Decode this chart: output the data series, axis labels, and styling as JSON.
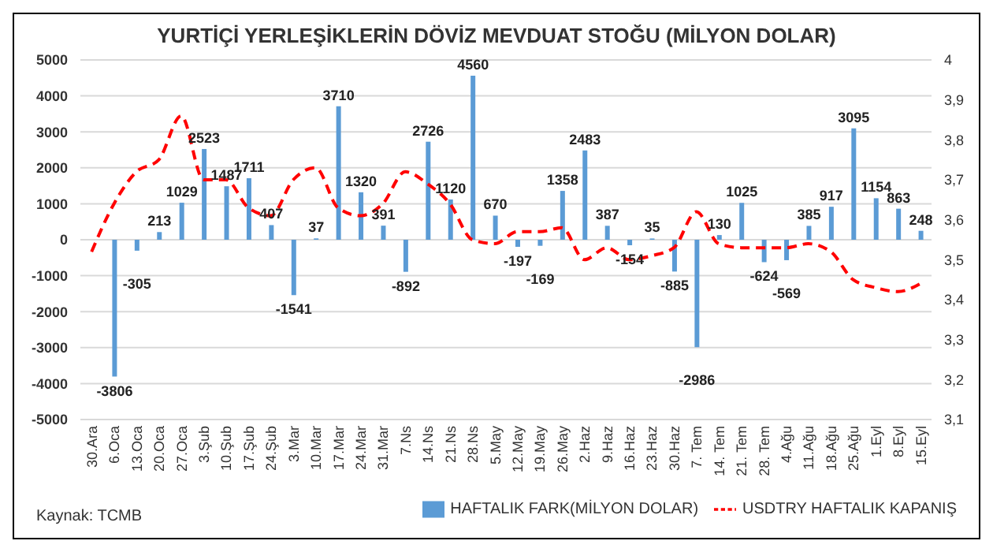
{
  "chart_data": {
    "type": "bar",
    "title": "YURTİÇİ YERLEŞİKLERİN DÖVİZ MEVDUAT STOĞU (MİLYON DOLAR)",
    "categories": [
      "30.Ara",
      "6.Oca",
      "13.Oca",
      "20.Oca",
      "27.Oca",
      "3.Şub",
      "10.Şub",
      "17.Şub",
      "24.Şub",
      "3.Mar",
      "10.Mar",
      "17.Mar",
      "24.Mar",
      "31.Mar",
      "7.Ns",
      "14.Ns",
      "21.Ns",
      "28.Ns",
      "5.May",
      "12.May",
      "19.May",
      "26.May",
      "2.Haz",
      "9.Haz",
      "16.Haz",
      "23.Haz",
      "30.Haz",
      "7. Tem",
      "14. Tem",
      "21. Tem",
      "28. Tem",
      "4.Ağu",
      "11.Ağu",
      "18.Ağu",
      "25.Ağu",
      "1.Eyl",
      "8.Eyl",
      "15.Eyl"
    ],
    "series": [
      {
        "name": "HAFTALIK FARK(MİLYON DOLAR)",
        "color": "#5b9bd5",
        "values": [
          null,
          -3806,
          -305,
          213,
          1029,
          2523,
          1487,
          1711,
          407,
          -1541,
          37,
          3710,
          1320,
          391,
          -892,
          2726,
          1120,
          4560,
          670,
          -197,
          -169,
          1358,
          2483,
          387,
          -154,
          35,
          -885,
          -2986,
          130,
          1025,
          -624,
          -569,
          385,
          917,
          3095,
          1154,
          863,
          248
        ],
        "value_labels": [
          null,
          "-3806",
          "-305",
          "213",
          "1029",
          "2523",
          "1487",
          "1711",
          "407",
          "-1541",
          "37",
          "3710",
          "1320",
          "391",
          "-892",
          "2726",
          "1120",
          "4560",
          "670",
          "-197",
          "-169",
          "1358",
          "2483",
          "387",
          "-154",
          "35",
          "-885",
          "-2986",
          "130",
          "1025",
          "-624",
          "-569",
          "385",
          "917",
          "3095",
          "1154",
          "863",
          "248"
        ]
      },
      {
        "name": "USDTRY HAFTALIK KAPANIŞ",
        "type": "line",
        "axis": "y2",
        "color": "#ff0000",
        "line_style": "dashed",
        "values": [
          3.52,
          3.64,
          3.72,
          3.75,
          3.86,
          3.7,
          3.7,
          3.63,
          3.61,
          3.7,
          3.73,
          3.63,
          3.61,
          3.64,
          3.72,
          3.69,
          3.64,
          3.55,
          3.54,
          3.57,
          3.57,
          3.58,
          3.5,
          3.53,
          3.5,
          3.51,
          3.53,
          3.62,
          3.54,
          3.53,
          3.53,
          3.53,
          3.54,
          3.52,
          3.45,
          3.43,
          3.42,
          3.44
        ]
      }
    ],
    "ylim": [
      -5000,
      5000
    ],
    "yticks": [
      -5000,
      -4000,
      -3000,
      -2000,
      -1000,
      0,
      1000,
      2000,
      3000,
      4000,
      5000
    ],
    "y2lim": [
      3.1,
      4
    ],
    "y2ticks": [
      {
        "value": 3.1,
        "label": "3,1"
      },
      {
        "value": 3.2,
        "label": "3,2"
      },
      {
        "value": 3.3,
        "label": "3,3"
      },
      {
        "value": 3.4,
        "label": "3,4"
      },
      {
        "value": 3.5,
        "label": "3,5"
      },
      {
        "value": 3.6,
        "label": "3,6"
      },
      {
        "value": 3.7,
        "label": "3,7"
      },
      {
        "value": 3.8,
        "label": "3,8"
      },
      {
        "value": 3.9,
        "label": "3,9"
      },
      4
    ],
    "grid": "y",
    "legend": "bottom",
    "marker": "none",
    "annotations": [
      "Kaynak: TCMB"
    ]
  }
}
